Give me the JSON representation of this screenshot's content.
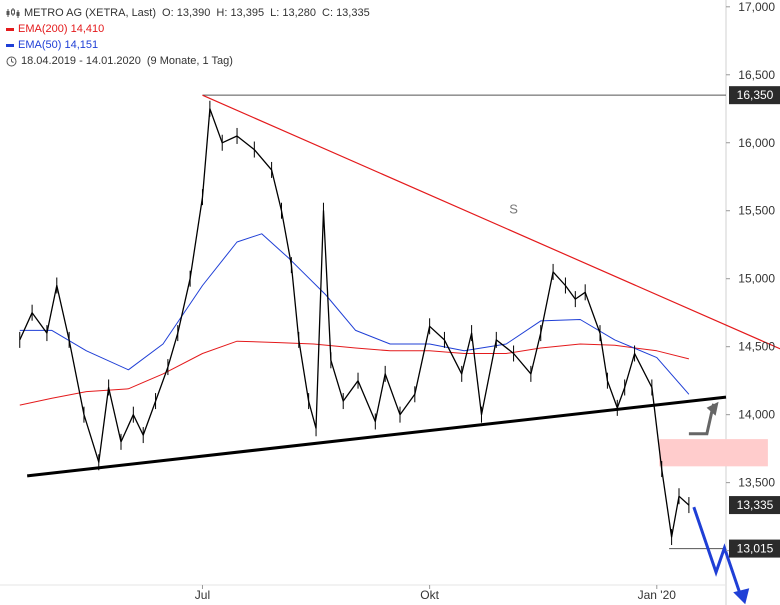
{
  "chart_data": {
    "type": "candlestick",
    "legend": {
      "symbol_icon": "candlestick-icon",
      "title": "METRO AG (XETRA, Last)",
      "ohlc": [
        {
          "label": "O:",
          "value": "13,390"
        },
        {
          "label": "H:",
          "value": "13,395"
        },
        {
          "label": "L:",
          "value": "13,280"
        },
        {
          "label": "C:",
          "value": "13,335"
        }
      ],
      "indicators": [
        {
          "name": "EMA(200)",
          "value": "14,410",
          "color": "#e41a1c"
        },
        {
          "name": "EMA(50)",
          "value": "14,151",
          "color": "#1f3fd6"
        }
      ],
      "range_icon": "clock-icon",
      "date_range": "18.04.2019 - 14.01.2020",
      "period": "(9 Monate, 1 Tag)"
    },
    "y_axis": {
      "ylim": [
        12.6,
        17.05
      ],
      "ticks": [
        13.0,
        13.5,
        14.0,
        14.5,
        15.0,
        15.5,
        16.0,
        16.5,
        17.0
      ],
      "tick_labels": [
        "13,000",
        "13,500",
        "14,000",
        "14,500",
        "15,000",
        "15,500",
        "16,000",
        "16,500",
        "17,000"
      ],
      "position": "right"
    },
    "x_axis": {
      "start": "2019-04-18",
      "end": "2020-01-14",
      "tick_labels": [
        {
          "label": "Jul",
          "date": "2019-07-01"
        },
        {
          "label": "Okt",
          "date": "2019-10-01"
        },
        {
          "label": "Jan '20",
          "date": "2020-01-01"
        }
      ]
    },
    "series": [
      {
        "name": "EMA(200)",
        "color": "#e41a1c",
        "points": [
          [
            "2019-04-18",
            14.07
          ],
          [
            "2019-05-01",
            14.12
          ],
          [
            "2019-05-15",
            14.17
          ],
          [
            "2019-06-01",
            14.19
          ],
          [
            "2019-06-15",
            14.3
          ],
          [
            "2019-07-01",
            14.45
          ],
          [
            "2019-07-15",
            14.54
          ],
          [
            "2019-08-01",
            14.53
          ],
          [
            "2019-08-15",
            14.52
          ],
          [
            "2019-09-01",
            14.49
          ],
          [
            "2019-09-15",
            14.47
          ],
          [
            "2019-10-01",
            14.47
          ],
          [
            "2019-10-15",
            14.45
          ],
          [
            "2019-11-01",
            14.45
          ],
          [
            "2019-11-15",
            14.49
          ],
          [
            "2019-12-01",
            14.52
          ],
          [
            "2019-12-15",
            14.51
          ],
          [
            "2020-01-01",
            14.47
          ],
          [
            "2020-01-14",
            14.41
          ]
        ]
      },
      {
        "name": "EMA(50)",
        "color": "#1f3fd6",
        "points": [
          [
            "2019-04-18",
            14.62
          ],
          [
            "2019-05-01",
            14.62
          ],
          [
            "2019-05-15",
            14.47
          ],
          [
            "2019-06-01",
            14.33
          ],
          [
            "2019-06-15",
            14.52
          ],
          [
            "2019-07-01",
            14.95
          ],
          [
            "2019-07-15",
            15.27
          ],
          [
            "2019-07-25",
            15.33
          ],
          [
            "2019-08-05",
            15.15
          ],
          [
            "2019-08-20",
            14.88
          ],
          [
            "2019-09-01",
            14.62
          ],
          [
            "2019-09-15",
            14.52
          ],
          [
            "2019-10-01",
            14.52
          ],
          [
            "2019-10-15",
            14.47
          ],
          [
            "2019-11-01",
            14.52
          ],
          [
            "2019-11-15",
            14.69
          ],
          [
            "2019-12-01",
            14.7
          ],
          [
            "2019-12-15",
            14.55
          ],
          [
            "2020-01-01",
            14.42
          ],
          [
            "2020-01-14",
            14.15
          ]
        ]
      },
      {
        "name": "Price",
        "color": "#000000",
        "points": [
          [
            "2019-04-18",
            14.55
          ],
          [
            "2019-04-23",
            14.75
          ],
          [
            "2019-04-29",
            14.6
          ],
          [
            "2019-05-03",
            14.95
          ],
          [
            "2019-05-08",
            14.55
          ],
          [
            "2019-05-14",
            14.0
          ],
          [
            "2019-05-20",
            13.65
          ],
          [
            "2019-05-24",
            14.2
          ],
          [
            "2019-05-29",
            13.8
          ],
          [
            "2019-06-03",
            14.0
          ],
          [
            "2019-06-07",
            13.85
          ],
          [
            "2019-06-12",
            14.1
          ],
          [
            "2019-06-17",
            14.35
          ],
          [
            "2019-06-21",
            14.6
          ],
          [
            "2019-06-26",
            15.0
          ],
          [
            "2019-07-01",
            15.6
          ],
          [
            "2019-07-04",
            16.25
          ],
          [
            "2019-07-09",
            16.0
          ],
          [
            "2019-07-15",
            16.05
          ],
          [
            "2019-07-22",
            15.95
          ],
          [
            "2019-07-29",
            15.8
          ],
          [
            "2019-08-02",
            15.5
          ],
          [
            "2019-08-06",
            15.1
          ],
          [
            "2019-08-09",
            14.55
          ],
          [
            "2019-08-13",
            14.1
          ],
          [
            "2019-08-16",
            13.9
          ],
          [
            "2019-08-19",
            15.5
          ],
          [
            "2019-08-22",
            14.4
          ],
          [
            "2019-08-27",
            14.1
          ],
          [
            "2019-09-02",
            14.25
          ],
          [
            "2019-09-09",
            13.95
          ],
          [
            "2019-09-13",
            14.3
          ],
          [
            "2019-09-19",
            14.0
          ],
          [
            "2019-09-25",
            14.15
          ],
          [
            "2019-10-01",
            14.65
          ],
          [
            "2019-10-07",
            14.55
          ],
          [
            "2019-10-14",
            14.3
          ],
          [
            "2019-10-18",
            14.6
          ],
          [
            "2019-10-22",
            14.0
          ],
          [
            "2019-10-28",
            14.55
          ],
          [
            "2019-11-04",
            14.45
          ],
          [
            "2019-11-11",
            14.3
          ],
          [
            "2019-11-15",
            14.6
          ],
          [
            "2019-11-20",
            15.05
          ],
          [
            "2019-11-25",
            14.95
          ],
          [
            "2019-11-29",
            14.85
          ],
          [
            "2019-12-03",
            14.9
          ],
          [
            "2019-12-09",
            14.6
          ],
          [
            "2019-12-12",
            14.25
          ],
          [
            "2019-12-16",
            14.05
          ],
          [
            "2019-12-19",
            14.2
          ],
          [
            "2019-12-23",
            14.45
          ],
          [
            "2019-12-30",
            14.2
          ],
          [
            "2020-01-03",
            13.6
          ],
          [
            "2020-01-07",
            13.1
          ],
          [
            "2020-01-10",
            13.4
          ],
          [
            "2020-01-14",
            13.335
          ]
        ]
      }
    ],
    "price_tags": [
      {
        "value": 16.35,
        "label": "16,350"
      },
      {
        "value": 13.335,
        "label": "13,335"
      },
      {
        "value": 13.015,
        "label": "13,015"
      }
    ],
    "annotations": {
      "marker_text": "S",
      "downtrend_line": {
        "color": "#e41a1c",
        "from": [
          "2019-07-01",
          16.35
        ],
        "to": [
          "2020-02-28",
          14.42
        ]
      },
      "support_line": {
        "color": "#000000",
        "from": [
          "2019-04-21",
          13.55
        ],
        "to": [
          "2020-02-28",
          14.19
        ]
      },
      "resistance_zone": {
        "color": "#ffcccc",
        "from": "2020-01-02",
        "to": "2020-02-15",
        "low": 13.62,
        "high": 13.82
      },
      "up_arrow": {
        "color": "#666666",
        "from": [
          "2020-01-14",
          13.86
        ],
        "to": [
          "2020-01-24",
          14.08
        ]
      },
      "down_arrow": {
        "color": "#1f3fd6",
        "from": [
          "2020-01-16",
          13.32
        ],
        "to": [
          "2020-02-05",
          12.62
        ]
      }
    }
  }
}
